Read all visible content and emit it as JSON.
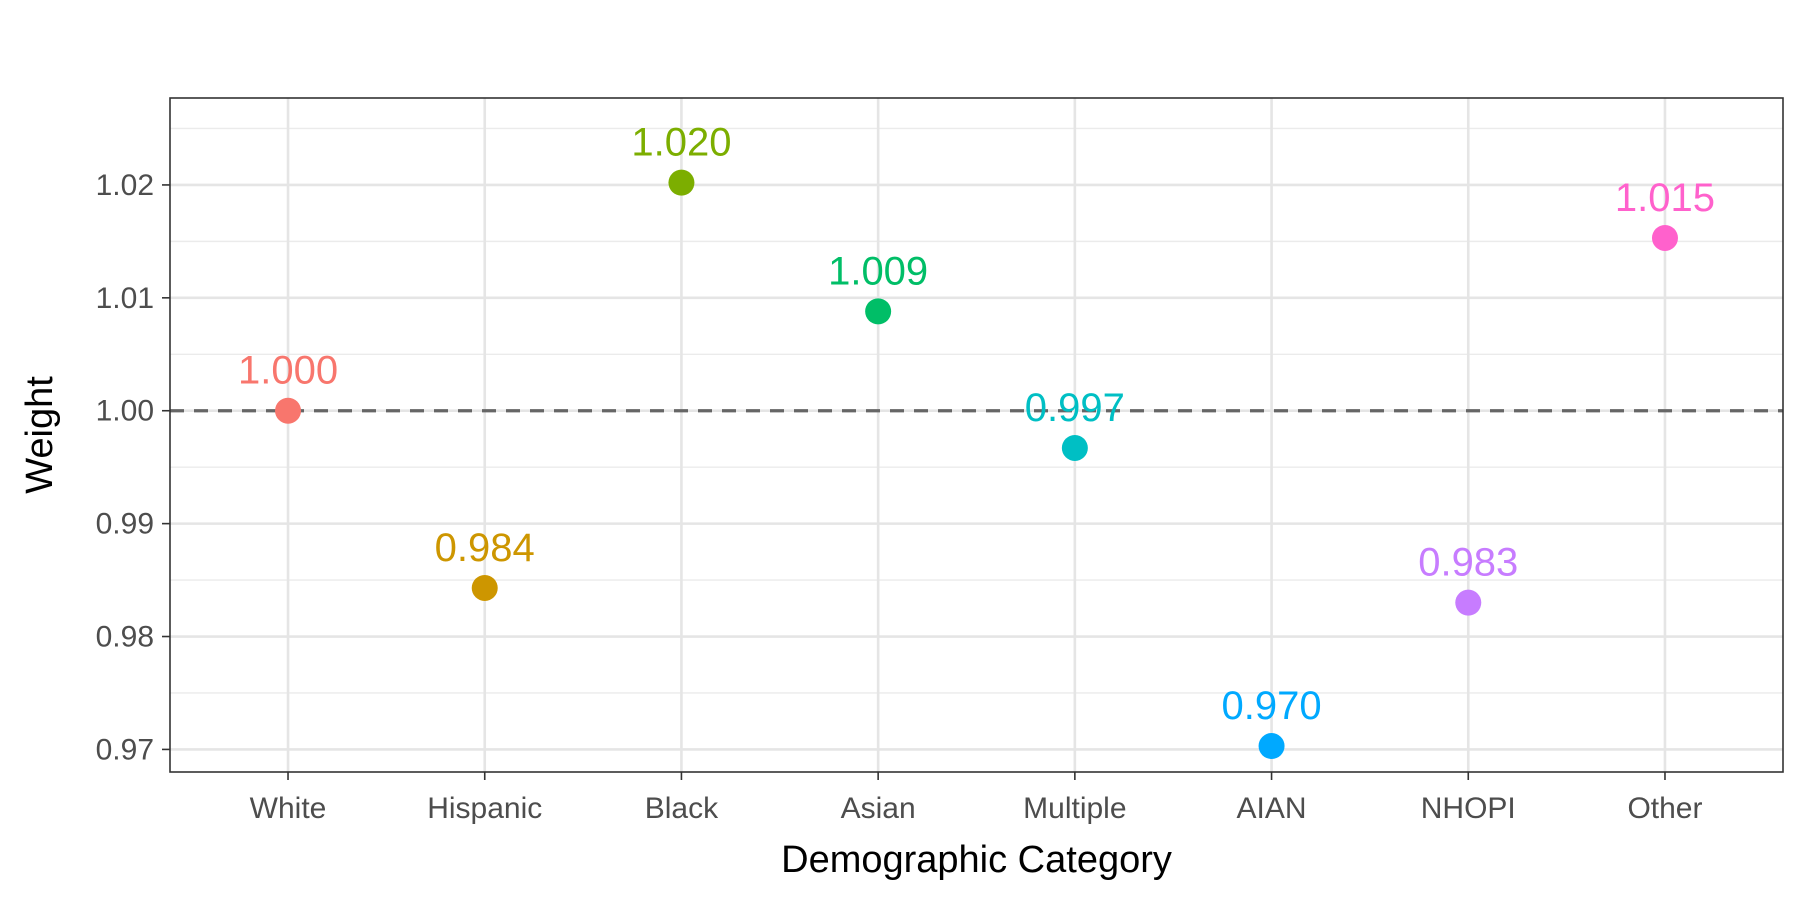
{
  "chart_data": {
    "type": "scatter",
    "title": "",
    "xlabel": "Demographic Category",
    "ylabel": "Weight",
    "categories": [
      "White",
      "Hispanic",
      "Black",
      "Asian",
      "Multiple",
      "AIAN",
      "NHOPI",
      "Other"
    ],
    "values": [
      1.0,
      0.9843,
      1.0202,
      1.0088,
      0.9967,
      0.9703,
      0.983,
      1.0153
    ],
    "labels": [
      "1.000",
      "0.984",
      "1.020",
      "1.009",
      "0.997",
      "0.970",
      "0.983",
      "1.015"
    ],
    "colors": [
      "#F8766D",
      "#CD9600",
      "#7CAE00",
      "#00BE67",
      "#00BFC4",
      "#00A9FF",
      "#C77CFF",
      "#FF61CC"
    ],
    "ylim": [
      0.968,
      1.0277
    ],
    "yticks": [
      0.97,
      0.98,
      0.99,
      1.0,
      1.01,
      1.02
    ],
    "ytick_labels": [
      "0.97",
      "0.98",
      "0.99",
      "1.00",
      "1.01",
      "1.02"
    ],
    "reference_line": 1.0,
    "grid": true,
    "legend": "none"
  }
}
